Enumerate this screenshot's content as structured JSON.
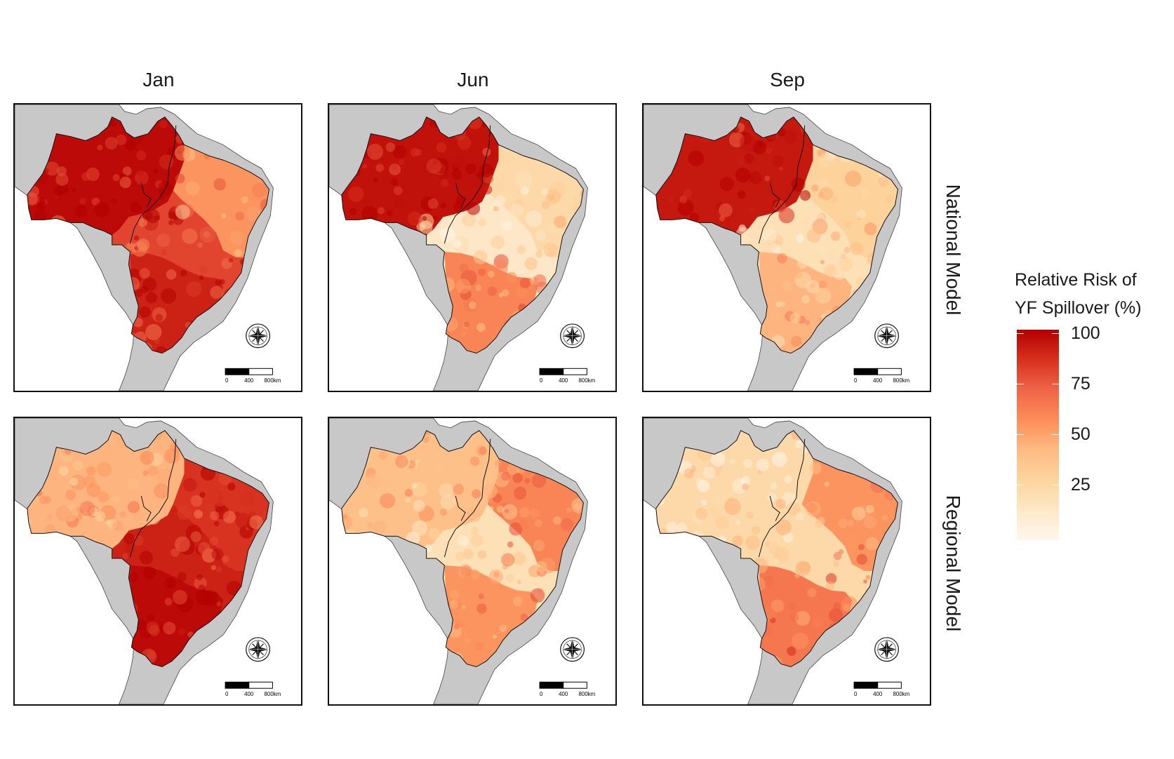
{
  "columns": [
    "Jan",
    "Jun",
    "Sep"
  ],
  "rows": [
    "National Model",
    "Regional Model"
  ],
  "legend": {
    "title_line1": "Relative Risk of",
    "title_line2": "YF Spillover (%)",
    "ticks": [
      "100",
      "75",
      "50",
      "25"
    ],
    "colors": [
      "#b30000",
      "#d7301f",
      "#ef6548",
      "#fc8d59",
      "#fdbb84",
      "#fdd49e",
      "#fee8c8",
      "#fff7ec"
    ]
  },
  "scalebar": {
    "labels": [
      "0",
      "400",
      "800km"
    ]
  },
  "panels": [
    {
      "row": "National Model",
      "column": "Jan",
      "level_north": 0.97,
      "level_center": 0.9,
      "level_northeast": 0.55,
      "level_south": 0.8
    },
    {
      "row": "National Model",
      "column": "Jun",
      "level_north": 0.95,
      "level_center": 0.6,
      "level_northeast": 0.25,
      "level_south": 0.15
    },
    {
      "row": "National Model",
      "column": "Sep",
      "level_north": 0.93,
      "level_center": 0.45,
      "level_northeast": 0.3,
      "level_south": 0.2
    },
    {
      "row": "Regional Model",
      "column": "Jan",
      "level_north": 0.45,
      "level_center": 0.97,
      "level_northeast": 0.85,
      "level_south": 0.9
    },
    {
      "row": "Regional Model",
      "column": "Jun",
      "level_north": 0.4,
      "level_center": 0.55,
      "level_northeast": 0.6,
      "level_south": 0.2
    },
    {
      "row": "Regional Model",
      "column": "Sep",
      "level_north": 0.25,
      "level_center": 0.65,
      "level_northeast": 0.55,
      "level_south": 0.25
    }
  ]
}
